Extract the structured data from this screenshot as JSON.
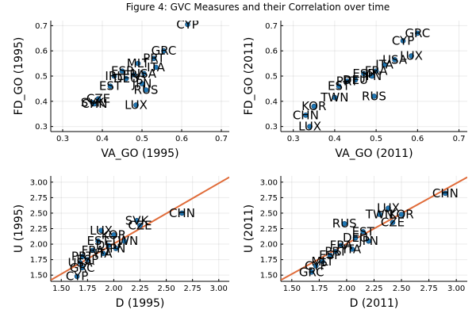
{
  "figure": {
    "title": "Figure 4: GVC Measures and their Correlation over time"
  },
  "colors": {
    "point": "#1f77b4",
    "point_edge": "#0b3c66",
    "fit_line": "#e06c3a",
    "label": "#000000"
  },
  "chart_data": [
    {
      "type": "scatter",
      "xlabel": "VA_GO (1995)",
      "ylabel": "FD_GO (1995)",
      "xlim": [
        0.27,
        0.72
      ],
      "ylim": [
        0.28,
        0.72
      ],
      "xticks": [
        0.3,
        0.4,
        0.5,
        0.6,
        0.7
      ],
      "yticks": [
        0.3,
        0.4,
        0.5,
        0.6,
        0.7
      ],
      "xtick_labels": [
        "0.3",
        "0.4",
        "0.5",
        "0.6",
        "0.7"
      ],
      "ytick_labels": [
        "0.3",
        "0.4",
        "0.5",
        "0.6",
        "0.7"
      ],
      "grid": true,
      "legend": "none",
      "points": [
        {
          "label": "CYP",
          "x": 0.615,
          "y": 0.705
        },
        {
          "label": "GRC",
          "x": 0.555,
          "y": 0.6
        },
        {
          "label": "PRT",
          "x": 0.53,
          "y": 0.57
        },
        {
          "label": "MLT",
          "x": 0.49,
          "y": 0.55
        },
        {
          "label": "ITA",
          "x": 0.535,
          "y": 0.535
        },
        {
          "label": "ESP",
          "x": 0.45,
          "y": 0.52
        },
        {
          "label": "FRA",
          "x": 0.48,
          "y": 0.505
        },
        {
          "label": "DEU",
          "x": 0.46,
          "y": 0.49
        },
        {
          "label": "JPN",
          "x": 0.5,
          "y": 0.47
        },
        {
          "label": "USA",
          "x": 0.505,
          "y": 0.51
        },
        {
          "label": "IRL",
          "x": 0.43,
          "y": 0.5
        },
        {
          "label": "EST",
          "x": 0.42,
          "y": 0.46
        },
        {
          "label": "RUS",
          "x": 0.51,
          "y": 0.445
        },
        {
          "label": "CZE",
          "x": 0.39,
          "y": 0.41
        },
        {
          "label": "SVK",
          "x": 0.375,
          "y": 0.395
        },
        {
          "label": "CHN",
          "x": 0.38,
          "y": 0.39
        },
        {
          "label": "LUX",
          "x": 0.485,
          "y": 0.385
        }
      ]
    },
    {
      "type": "scatter",
      "xlabel": "VA_GO (2011)",
      "ylabel": "FD_GO (2011)",
      "xlim": [
        0.27,
        0.72
      ],
      "ylim": [
        0.28,
        0.72
      ],
      "xticks": [
        0.3,
        0.4,
        0.5,
        0.6,
        0.7
      ],
      "yticks": [
        0.3,
        0.4,
        0.5,
        0.6,
        0.7
      ],
      "xtick_labels": [
        "0.3",
        "0.4",
        "0.5",
        "0.6",
        "0.7"
      ],
      "ytick_labels": [
        "0.3",
        "0.4",
        "0.5",
        "0.6",
        "0.7"
      ],
      "grid": true,
      "legend": "none",
      "points": [
        {
          "label": "GRC",
          "x": 0.6,
          "y": 0.67
        },
        {
          "label": "CYP",
          "x": 0.565,
          "y": 0.64
        },
        {
          "label": "LUX",
          "x": 0.585,
          "y": 0.58
        },
        {
          "label": "USA",
          "x": 0.545,
          "y": 0.565
        },
        {
          "label": "ITA",
          "x": 0.52,
          "y": 0.545
        },
        {
          "label": "FRA",
          "x": 0.5,
          "y": 0.52
        },
        {
          "label": "ESP",
          "x": 0.47,
          "y": 0.51
        },
        {
          "label": "JPN",
          "x": 0.49,
          "y": 0.5
        },
        {
          "label": "DEU",
          "x": 0.45,
          "y": 0.485
        },
        {
          "label": "PRT",
          "x": 0.43,
          "y": 0.48
        },
        {
          "label": "EST",
          "x": 0.41,
          "y": 0.46
        },
        {
          "label": "RUS",
          "x": 0.495,
          "y": 0.42
        },
        {
          "label": "TWN",
          "x": 0.4,
          "y": 0.415
        },
        {
          "label": "KOR",
          "x": 0.35,
          "y": 0.38
        },
        {
          "label": "CHN",
          "x": 0.33,
          "y": 0.345
        },
        {
          "label": "LUX",
          "x": 0.34,
          "y": 0.3
        }
      ]
    },
    {
      "type": "scatter",
      "xlabel": "D (1995)",
      "ylabel": "U (1995)",
      "xlim": [
        1.4,
        3.1
      ],
      "ylim": [
        1.4,
        3.1
      ],
      "xticks": [
        1.5,
        1.75,
        2.0,
        2.25,
        2.5,
        2.75,
        3.0
      ],
      "yticks": [
        1.5,
        1.75,
        2.0,
        2.25,
        2.5,
        2.75,
        3.0
      ],
      "xtick_labels": [
        "1.50",
        "1.75",
        "2.00",
        "2.25",
        "2.50",
        "2.75",
        "3.00"
      ],
      "ytick_labels": [
        "1.50",
        "1.75",
        "2.00",
        "2.25",
        "2.50",
        "2.75",
        "3.00"
      ],
      "grid": true,
      "legend": "none",
      "fit_line": {
        "x": [
          1.4,
          3.1
        ],
        "y": [
          1.42,
          3.08
        ]
      },
      "points": [
        {
          "label": "CHN",
          "x": 2.65,
          "y": 2.5
        },
        {
          "label": "SVK",
          "x": 2.22,
          "y": 2.38
        },
        {
          "label": "CZE",
          "x": 2.25,
          "y": 2.3
        },
        {
          "label": "LUX",
          "x": 1.88,
          "y": 2.22
        },
        {
          "label": "KOR",
          "x": 2.0,
          "y": 2.15
        },
        {
          "label": "TWN",
          "x": 2.1,
          "y": 2.05
        },
        {
          "label": "EST",
          "x": 1.85,
          "y": 2.05
        },
        {
          "label": "DEU",
          "x": 1.95,
          "y": 1.98
        },
        {
          "label": "JPN",
          "x": 2.02,
          "y": 1.93
        },
        {
          "label": "FRA",
          "x": 1.8,
          "y": 1.9
        },
        {
          "label": "ITA",
          "x": 1.9,
          "y": 1.85
        },
        {
          "label": "PRT",
          "x": 1.7,
          "y": 1.8
        },
        {
          "label": "ESP",
          "x": 1.75,
          "y": 1.75
        },
        {
          "label": "USA",
          "x": 1.68,
          "y": 1.7
        },
        {
          "label": "GRC",
          "x": 1.7,
          "y": 1.62
        },
        {
          "label": "CYP",
          "x": 1.65,
          "y": 1.48
        }
      ]
    },
    {
      "type": "scatter",
      "xlabel": "D (2011)",
      "ylabel": "U (2011)",
      "xlim": [
        1.4,
        3.1
      ],
      "ylim": [
        1.4,
        3.1
      ],
      "xticks": [
        1.5,
        1.75,
        2.0,
        2.25,
        2.5,
        2.75,
        3.0
      ],
      "yticks": [
        1.5,
        1.75,
        2.0,
        2.25,
        2.5,
        2.75,
        3.0
      ],
      "xtick_labels": [
        "1.50",
        "1.75",
        "2.00",
        "2.25",
        "2.50",
        "2.75",
        "3.00"
      ],
      "ytick_labels": [
        "1.50",
        "1.75",
        "2.00",
        "2.25",
        "2.50",
        "2.75",
        "3.00"
      ],
      "grid": true,
      "legend": "none",
      "fit_line": {
        "x": [
          1.4,
          3.1
        ],
        "y": [
          1.42,
          3.08
        ]
      },
      "points": [
        {
          "label": "CHN",
          "x": 2.9,
          "y": 2.82
        },
        {
          "label": "LUX",
          "x": 2.38,
          "y": 2.58
        },
        {
          "label": "TWN",
          "x": 2.3,
          "y": 2.48
        },
        {
          "label": "KOR",
          "x": 2.5,
          "y": 2.48
        },
        {
          "label": "CZE",
          "x": 2.42,
          "y": 2.35
        },
        {
          "label": "RUS",
          "x": 1.98,
          "y": 2.33
        },
        {
          "label": "EST",
          "x": 2.15,
          "y": 2.2
        },
        {
          "label": "DEU",
          "x": 2.08,
          "y": 2.1
        },
        {
          "label": "JPN",
          "x": 2.2,
          "y": 2.05
        },
        {
          "label": "FRA",
          "x": 1.95,
          "y": 1.98
        },
        {
          "label": "ITA",
          "x": 2.05,
          "y": 1.92
        },
        {
          "label": "PRT",
          "x": 1.9,
          "y": 1.88
        },
        {
          "label": "ESP",
          "x": 1.85,
          "y": 1.82
        },
        {
          "label": "MLT",
          "x": 1.78,
          "y": 1.72
        },
        {
          "label": "CYP",
          "x": 1.72,
          "y": 1.65
        },
        {
          "label": "GRC",
          "x": 1.68,
          "y": 1.55
        }
      ]
    }
  ]
}
